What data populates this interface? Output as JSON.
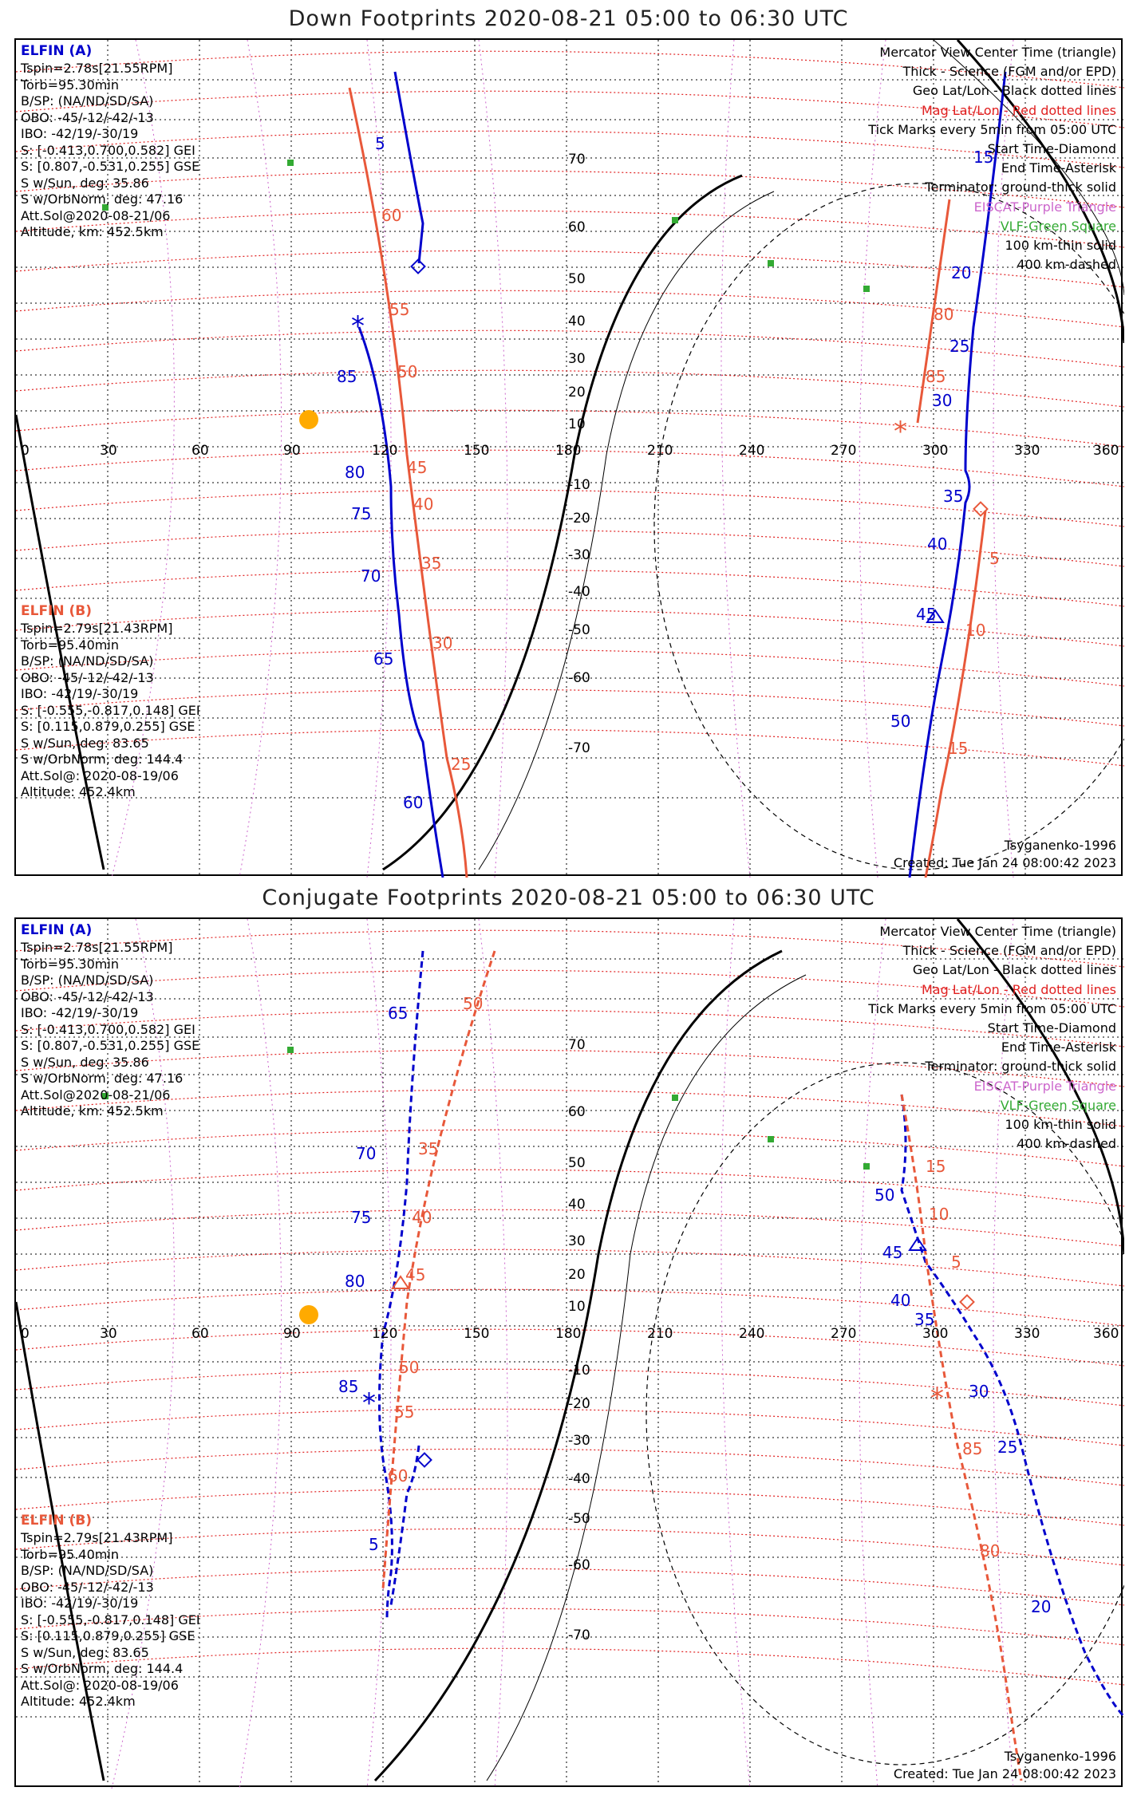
{
  "panels": [
    {
      "title": "Down Footprints 2020-08-21 05:00 to 06:30 UTC",
      "probe_a": {
        "name": "ELFIN (A)",
        "lines": [
          "Tspin=2.78s[21.55RPM]",
          "Torb=95.30min",
          "B/SP: (NA/ND/SD/SA)",
          "OBO: -45/-12/-42/-13",
          "IBO: -42/19/-30/19",
          "S: [-0.413,0.700,0.582] GEI",
          "S: [0.807,-0.531,0.255] GSE",
          "S w/Sun, deg: 35.86",
          "S w/OrbNorm, deg: 47.16",
          "Att.Sol@2020-08-21/06",
          "Altitude, km: 452.5km"
        ]
      },
      "probe_b": {
        "name": "ELFIN (B)",
        "lines": [
          "Tspin=2.79s[21.43RPM]",
          "Torb=95.40min",
          "B/SP: (NA/ND/SD/SA)",
          "OBO: -45/-12/-42/-13",
          "IBO: -42/19/-30/19",
          "S: [-0.555,-0.817,0.148] GEI",
          "S: [0.115,0.879,0.255] GSE",
          "S w/Sun, deg: 83.65",
          "S w/OrbNorm, deg: 144.4",
          "Att.Sol@: 2020-08-19/06",
          "Altitude: 452.4km"
        ]
      },
      "legend": [
        "Mercator View Center Time (triangle)",
        "Thick - Science (FGM and/or EPD)",
        "Geo Lat/Lon - Black dotted lines",
        "Mag Lat/Lon - Red dotted lines",
        "Tick Marks every 5min from 05:00 UTC",
        "Start Time-Diamond",
        "End Time-Asterisk",
        "Terminator: ground-thick solid",
        "EISCAT-Purple Triangle",
        "VLF-Green Square",
        "100 km-thin solid",
        "400 km-dashed"
      ],
      "model": "Tsyganenko-1996",
      "created": "Created: Tue Jan 24 08:00:42 2023",
      "lon_ticks": [
        "0",
        "30",
        "60",
        "90",
        "120",
        "150",
        "180",
        "210",
        "240",
        "270",
        "300",
        "330",
        "360"
      ],
      "lat_ticks": [
        "70",
        "60",
        "50",
        "40",
        "30",
        "20",
        "10",
        "-10",
        "-20",
        "-30",
        "-40",
        "-50",
        "-60",
        "-70"
      ],
      "track_a_labels": [
        "5",
        "85",
        "80",
        "75",
        "70",
        "65",
        "60",
        "15",
        "20",
        "25",
        "30",
        "35",
        "40",
        "45",
        "50"
      ],
      "track_b_labels": [
        "60",
        "55",
        "50",
        "45",
        "40",
        "35",
        "30",
        "25",
        "80",
        "85",
        "5",
        "10",
        "15"
      ]
    },
    {
      "title": "Conjugate Footprints 2020-08-21 05:00 to 06:30 UTC",
      "probe_a": {
        "name": "ELFIN (A)",
        "lines": [
          "Tspin=2.78s[21.55RPM]",
          "Torb=95.30min",
          "B/SP: (NA/ND/SD/SA)",
          "OBO: -45/-12/-42/-13",
          "IBO: -42/19/-30/19",
          "S: [-0.413,0.700,0.582] GEI",
          "S: [0.807,-0.531,0.255] GSE",
          "S w/Sun, deg: 35.86",
          "S w/OrbNorm, deg: 47.16",
          "Att.Sol@2020-08-21/06",
          "Altitude, km: 452.5km"
        ]
      },
      "probe_b": {
        "name": "ELFIN (B)",
        "lines": [
          "Tspin=2.79s[21.43RPM]",
          "Torb=95.40min",
          "B/SP: (NA/ND/SD/SA)",
          "OBO: -45/-12/-42/-13",
          "IBO: -42/19/-30/19",
          "S: [-0.555,-0.817,0.148] GEI",
          "S: [0.115,0.879,0.255] GSE",
          "S w/Sun, deg: 83.65",
          "S w/OrbNorm, deg: 144.4",
          "Att.Sol@: 2020-08-19/06",
          "Altitude: 452.4km"
        ]
      },
      "legend": [
        "Mercator View Center Time (triangle)",
        "Thick - Science (FGM and/or EPD)",
        "Geo Lat/Lon - Black dotted lines",
        "Mag Lat/Lon - Red dotted lines",
        "Tick Marks every 5min from 05:00 UTC",
        "Start Time-Diamond",
        "End Time-Asterisk",
        "Terminator: ground-thick solid",
        "EISCAT-Purple Triangle",
        "VLF-Green Square",
        "100 km-thin solid",
        "400 km-dashed"
      ],
      "model": "Tsyganenko-1996",
      "created": "Created: Tue Jan 24 08:00:42 2023",
      "lon_ticks": [
        "0",
        "30",
        "60",
        "90",
        "120",
        "150",
        "180",
        "210",
        "240",
        "270",
        "300",
        "330",
        "360"
      ],
      "lat_ticks": [
        "70",
        "60",
        "50",
        "40",
        "30",
        "20",
        "10",
        "-10",
        "-20",
        "-30",
        "-40",
        "-50",
        "-60",
        "-70"
      ],
      "track_a_labels": [
        "65",
        "70",
        "75",
        "80",
        "85",
        "5",
        "50",
        "45",
        "40",
        "35",
        "30",
        "25",
        "20"
      ],
      "track_b_labels": [
        "50",
        "35",
        "40",
        "45",
        "50",
        "55",
        "60",
        "15",
        "10",
        "5",
        "85",
        "80"
      ]
    }
  ],
  "colors": {
    "probe_a": "#0000cc",
    "probe_b": "#e8583a",
    "mag_grid": "#e02020",
    "geo_grid": "#000000",
    "eiscat": "#cc66cc",
    "vlf": "#33aa33",
    "sun": "#ffaa00"
  }
}
